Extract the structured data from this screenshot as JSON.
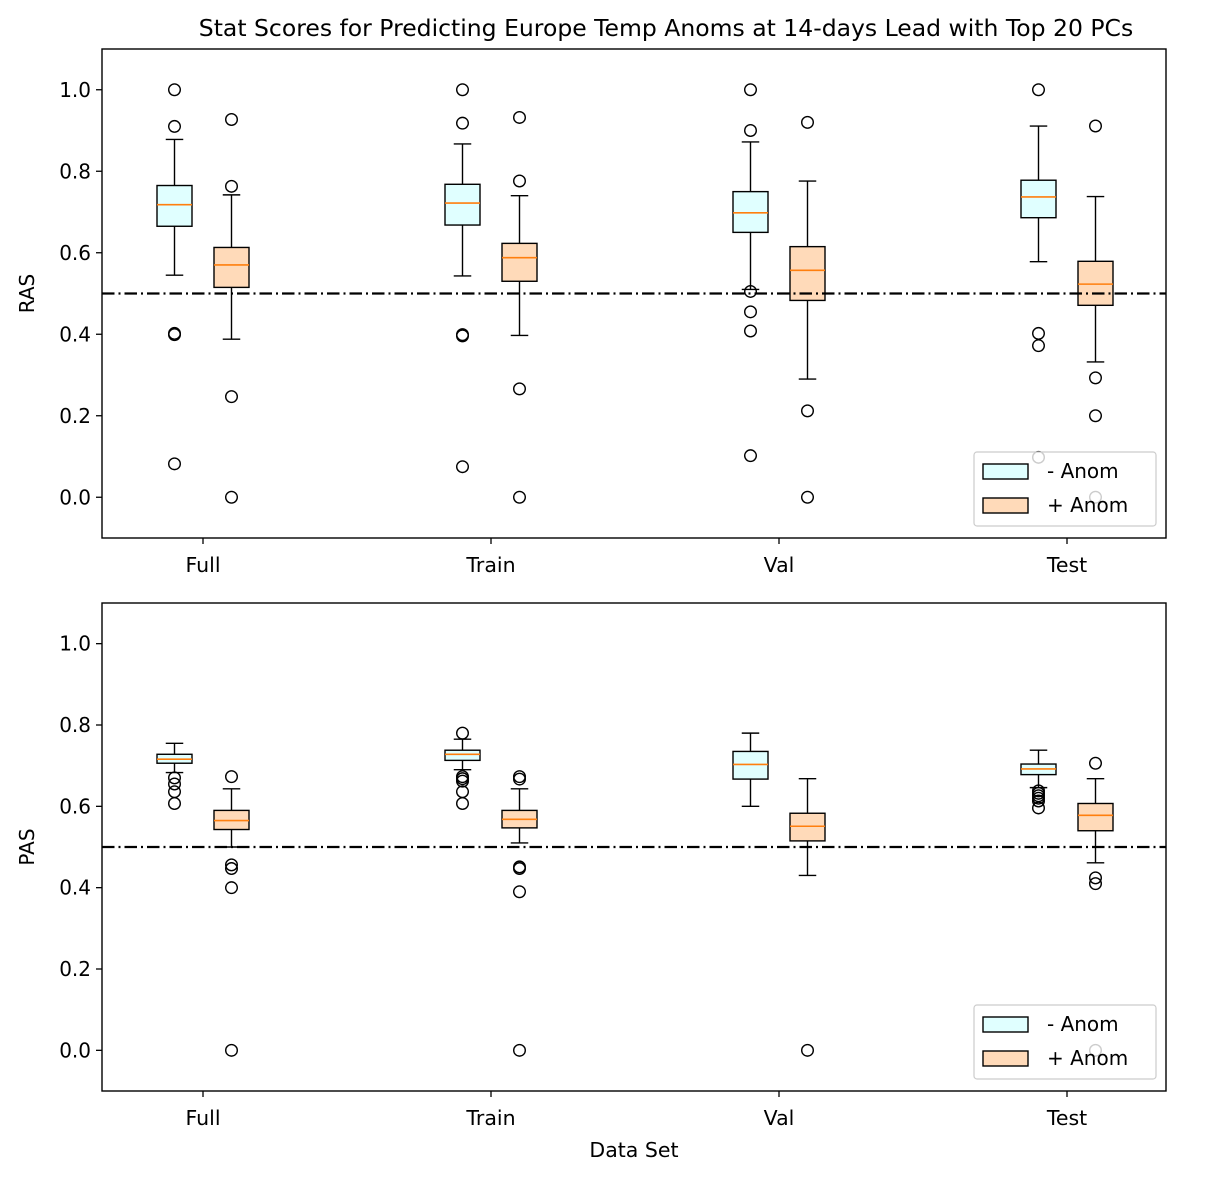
{
  "chart_data": [
    {
      "type": "box",
      "title": "Stat Scores for Predicting Europe Temp Anoms at 14-days Lead with Top 20 PCs",
      "xlabel": "",
      "ylabel": "RAS",
      "ylim": [
        -0.1,
        1.1
      ],
      "yticks": [
        "0.0",
        "0.2",
        "0.4",
        "0.6",
        "0.8",
        "1.0"
      ],
      "categories": [
        "Full",
        "Train",
        "Val",
        "Test"
      ],
      "reference_line": 0.5,
      "legend_position": "lower-right",
      "series": [
        {
          "name": "- Anom",
          "color": "#e0ffff",
          "boxes": [
            {
              "whislo": 0.545,
              "q1": 0.665,
              "med": 0.718,
              "q3": 0.765,
              "whishi": 0.878,
              "fliers": [
                1.0,
                0.91,
                0.402,
                0.399,
                0.082
              ]
            },
            {
              "whislo": 0.543,
              "q1": 0.668,
              "med": 0.722,
              "q3": 0.768,
              "whishi": 0.867,
              "fliers": [
                1.0,
                0.918,
                0.399,
                0.396,
                0.075
              ]
            },
            {
              "whislo": 0.51,
              "q1": 0.65,
              "med": 0.698,
              "q3": 0.75,
              "whishi": 0.872,
              "fliers": [
                1.0,
                0.9,
                0.505,
                0.455,
                0.408,
                0.102
              ]
            },
            {
              "whislo": 0.578,
              "q1": 0.686,
              "med": 0.737,
              "q3": 0.778,
              "whishi": 0.911,
              "fliers": [
                1.0,
                0.402,
                0.372,
                0.098
              ]
            }
          ]
        },
        {
          "name": "+ Anom",
          "color": "#ffdab9",
          "boxes": [
            {
              "whislo": 0.388,
              "q1": 0.515,
              "med": 0.57,
              "q3": 0.613,
              "whishi": 0.742,
              "fliers": [
                0.927,
                0.763,
                0.247,
                0.0
              ]
            },
            {
              "whislo": 0.397,
              "q1": 0.53,
              "med": 0.588,
              "q3": 0.623,
              "whishi": 0.74,
              "fliers": [
                0.932,
                0.776,
                0.266,
                0.0
              ]
            },
            {
              "whislo": 0.29,
              "q1": 0.483,
              "med": 0.557,
              "q3": 0.615,
              "whishi": 0.776,
              "fliers": [
                0.92,
                0.212,
                0.0
              ]
            },
            {
              "whislo": 0.332,
              "q1": 0.471,
              "med": 0.523,
              "q3": 0.579,
              "whishi": 0.738,
              "fliers": [
                0.911,
                0.293,
                0.2,
                0.0
              ]
            }
          ]
        }
      ]
    },
    {
      "type": "box",
      "title": "",
      "xlabel": "Data Set",
      "ylabel": "PAS",
      "ylim": [
        -0.1,
        1.1
      ],
      "yticks": [
        "0.0",
        "0.2",
        "0.4",
        "0.6",
        "0.8",
        "1.0"
      ],
      "categories": [
        "Full",
        "Train",
        "Val",
        "Test"
      ],
      "reference_line": 0.5,
      "legend_position": "lower-right",
      "series": [
        {
          "name": "- Anom",
          "color": "#e0ffff",
          "boxes": [
            {
              "whislo": 0.683,
              "q1": 0.706,
              "med": 0.716,
              "q3": 0.728,
              "whishi": 0.755,
              "fliers": [
                0.67,
                0.655,
                0.636,
                0.607
              ]
            },
            {
              "whislo": 0.69,
              "q1": 0.713,
              "med": 0.728,
              "q3": 0.738,
              "whishi": 0.765,
              "fliers": [
                0.78,
                0.673,
                0.668,
                0.662,
                0.636,
                0.607
              ]
            },
            {
              "whislo": 0.6,
              "q1": 0.667,
              "med": 0.703,
              "q3": 0.735,
              "whishi": 0.78,
              "fliers": []
            },
            {
              "whislo": 0.646,
              "q1": 0.678,
              "med": 0.692,
              "q3": 0.704,
              "whishi": 0.738,
              "fliers": [
                0.638,
                0.632,
                0.626,
                0.62,
                0.613,
                0.596
              ]
            }
          ]
        },
        {
          "name": "+ Anom",
          "color": "#ffdab9",
          "boxes": [
            {
              "whislo": 0.5,
              "q1": 0.543,
              "med": 0.565,
              "q3": 0.59,
              "whishi": 0.643,
              "fliers": [
                0.673,
                0.456,
                0.447,
                0.4,
                0.0
              ]
            },
            {
              "whislo": 0.51,
              "q1": 0.547,
              "med": 0.568,
              "q3": 0.59,
              "whishi": 0.643,
              "fliers": [
                0.673,
                0.667,
                0.451,
                0.447,
                0.39,
                0.0
              ]
            },
            {
              "whislo": 0.43,
              "q1": 0.515,
              "med": 0.551,
              "q3": 0.583,
              "whishi": 0.668,
              "fliers": [
                0.0
              ]
            },
            {
              "whislo": 0.461,
              "q1": 0.54,
              "med": 0.578,
              "q3": 0.607,
              "whishi": 0.668,
              "fliers": [
                0.706,
                0.424,
                0.41,
                0.0
              ]
            }
          ]
        }
      ]
    }
  ]
}
